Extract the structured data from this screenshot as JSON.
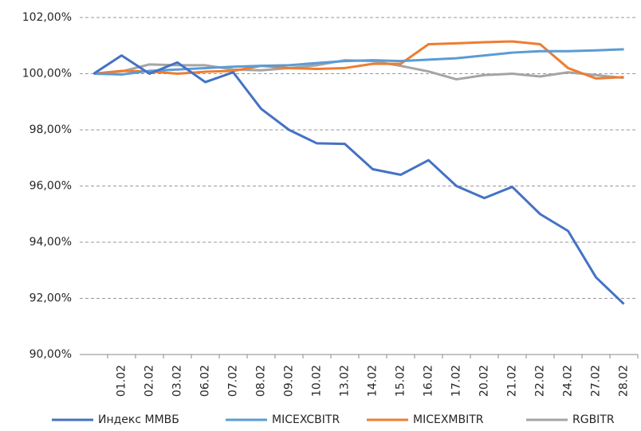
{
  "chart_data": {
    "type": "line",
    "categories": [
      null,
      "01.02",
      "02.02",
      "03.02",
      "06.02",
      "07.02",
      "08.02",
      "09.02",
      "10.02",
      "13.02",
      "14.02",
      "15.02",
      "16.02",
      "17.02",
      "20.02",
      "21.02",
      "22.02",
      "24.02",
      "27.02",
      "28.02"
    ],
    "series": [
      {
        "name": "Индекс ММВБ",
        "color": "#4472c4",
        "values": [
          100,
          100.65,
          100.0,
          100.4,
          99.7,
          100.05,
          98.75,
          98.0,
          97.52,
          97.5,
          96.6,
          96.4,
          96.92,
          96.0,
          95.57,
          95.97,
          95.0,
          94.4,
          92.75,
          91.8
        ]
      },
      {
        "name": "MICEXCBITR",
        "color": "#5b9bd5",
        "values": [
          100,
          99.97,
          100.1,
          100.15,
          100.2,
          100.25,
          100.28,
          100.3,
          100.38,
          100.45,
          100.48,
          100.45,
          100.5,
          100.55,
          100.65,
          100.75,
          100.8,
          100.8,
          100.83,
          100.87
        ]
      },
      {
        "name": "MICEXMBITR",
        "color": "#ed7d31",
        "values": [
          100,
          100.1,
          100.08,
          100.0,
          100.07,
          100.1,
          100.28,
          100.2,
          100.17,
          100.2,
          100.35,
          100.35,
          101.05,
          101.08,
          101.12,
          101.15,
          101.05,
          100.2,
          99.83,
          99.88
        ]
      },
      {
        "name": "RGBITR",
        "color": "#a5a5a5",
        "values": [
          100,
          100.08,
          100.33,
          100.3,
          100.3,
          100.15,
          100.12,
          100.2,
          100.3,
          100.48,
          100.45,
          100.28,
          100.08,
          99.8,
          99.95,
          100.0,
          99.9,
          100.05,
          99.95,
          99.85
        ]
      }
    ],
    "ylim": [
      90,
      102
    ],
    "yticks": [
      {
        "value": 90,
        "label": "90,00%"
      },
      {
        "value": 92,
        "label": "92,00%"
      },
      {
        "value": 94,
        "label": "94,00%"
      },
      {
        "value": 96,
        "label": "96,00%"
      },
      {
        "value": 98,
        "label": "98,00%"
      },
      {
        "value": 100,
        "label": "100,00%"
      },
      {
        "value": 102,
        "label": "102,00%"
      }
    ],
    "grid": true,
    "legend": "bottom"
  }
}
